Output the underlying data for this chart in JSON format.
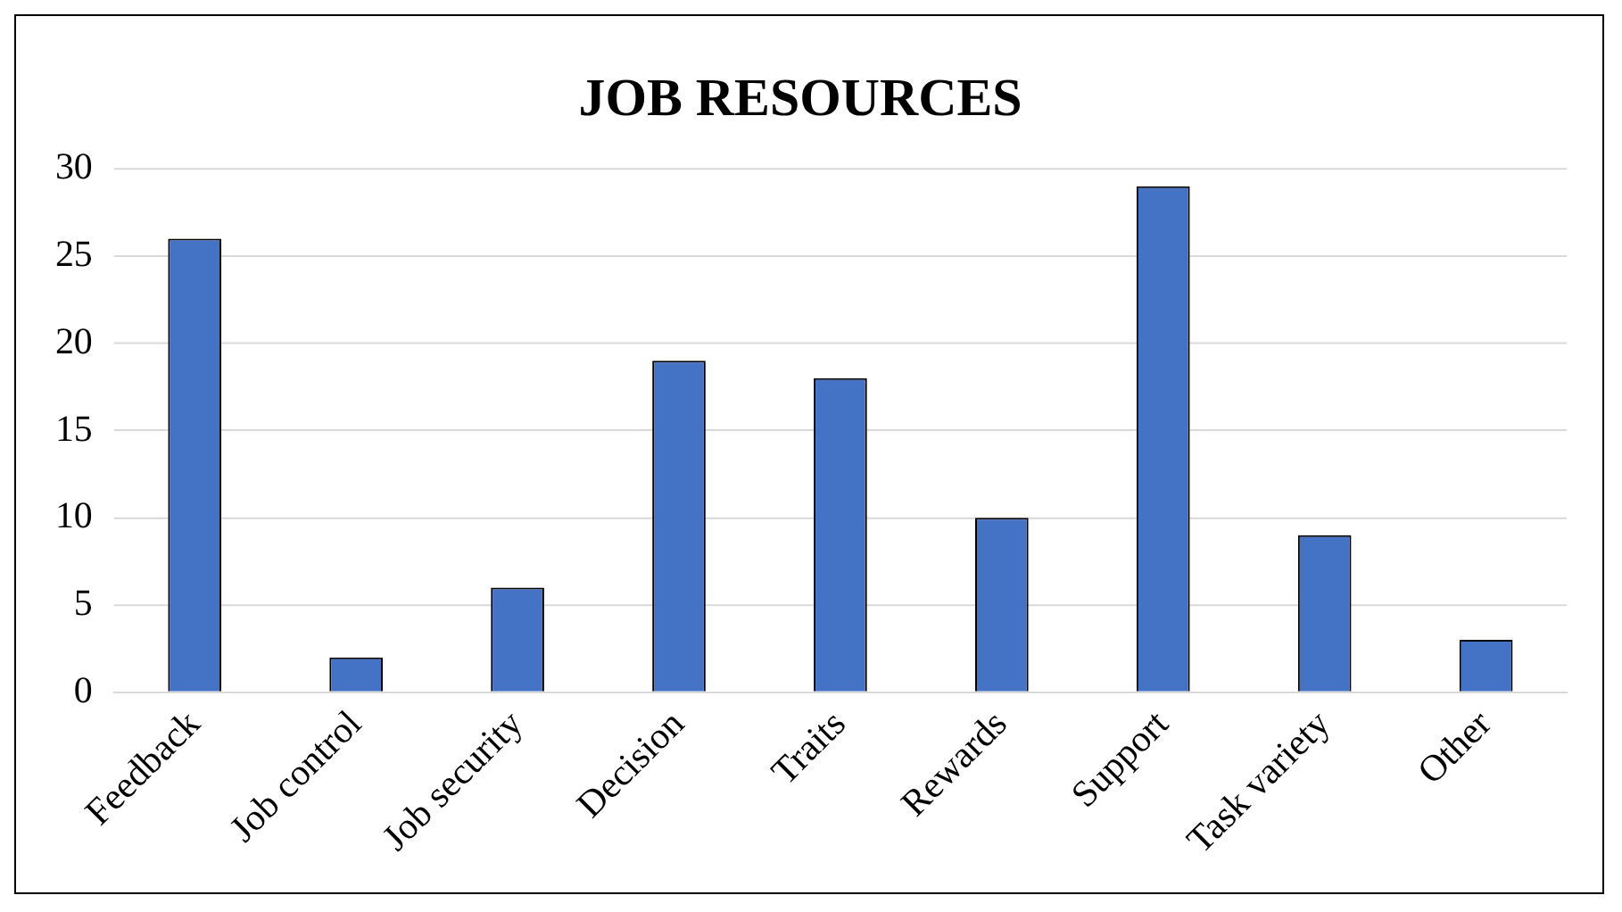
{
  "chart_data": {
    "type": "bar",
    "title": "JOB RESOURCES",
    "categories": [
      "Feedback",
      "Job control",
      "Job security",
      "Decision",
      "Traits",
      "Rewards",
      "Support",
      "Task variety",
      "Other"
    ],
    "values": [
      26,
      2,
      6,
      19,
      18,
      10,
      29,
      9,
      3
    ],
    "color": "#4472c4",
    "ylim": [
      0,
      30
    ],
    "yticks": [
      0,
      5,
      10,
      15,
      20,
      25,
      30
    ],
    "grid": "y"
  }
}
